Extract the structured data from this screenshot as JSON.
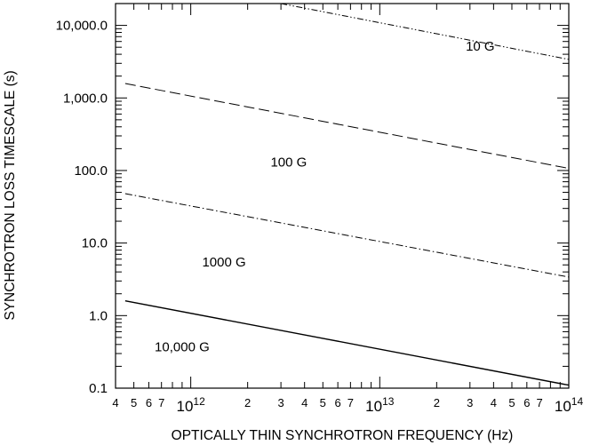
{
  "chart_data": {
    "type": "line",
    "x_scale": "log",
    "y_scale": "log",
    "xlim": [
      400000000000.0,
      100000000000000.0
    ],
    "ylim": [
      0.1,
      20000
    ],
    "xlabel": "OPTICALLY THIN SYNCHROTRON FREQUENCY (Hz)",
    "ylabel": "SYNCHROTRON LOSS TIMESCALE (s)",
    "grid": false,
    "x_ticks": [
      {
        "value": 400000000000.0,
        "label": "4"
      },
      {
        "value": 500000000000.0,
        "label": "5"
      },
      {
        "value": 600000000000.0,
        "label": "6"
      },
      {
        "value": 700000000000.0,
        "label": "7"
      },
      {
        "value": 1000000000000.0,
        "label": "10",
        "sup": "12"
      },
      {
        "value": 2000000000000.0,
        "label": "2"
      },
      {
        "value": 3000000000000.0,
        "label": "3"
      },
      {
        "value": 4000000000000.0,
        "label": "4"
      },
      {
        "value": 5000000000000.0,
        "label": "5"
      },
      {
        "value": 6000000000000.0,
        "label": "6"
      },
      {
        "value": 7000000000000.0,
        "label": "7"
      },
      {
        "value": 10000000000000.0,
        "label": "10",
        "sup": "13"
      },
      {
        "value": 20000000000000.0,
        "label": "2"
      },
      {
        "value": 30000000000000.0,
        "label": "3"
      },
      {
        "value": 40000000000000.0,
        "label": "4"
      },
      {
        "value": 50000000000000.0,
        "label": "5"
      },
      {
        "value": 60000000000000.0,
        "label": "6"
      },
      {
        "value": 70000000000000.0,
        "label": "7"
      },
      {
        "value": 100000000000000.0,
        "label": "10",
        "sup": "14"
      }
    ],
    "y_ticks": [
      {
        "value": 0.1,
        "label": "0.1"
      },
      {
        "value": 1,
        "label": "1.0"
      },
      {
        "value": 10,
        "label": "10.0"
      },
      {
        "value": 100,
        "label": "100.0"
      },
      {
        "value": 1000,
        "label": "1,000.0"
      },
      {
        "value": 10000,
        "label": "10,000.0"
      }
    ],
    "series": [
      {
        "name": "10 G",
        "dash": "dash-dot-dot",
        "x": [
          3000000000000.0,
          100000000000000.0
        ],
        "y": [
          20000,
          3400
        ],
        "label_at": [
          34000000000000.0,
          5200
        ]
      },
      {
        "name": "100 G",
        "dash": "dash",
        "x": [
          450000000000.0,
          100000000000000.0
        ],
        "y": [
          1580,
          107
        ],
        "label_at": [
          3300000000000.0,
          130
        ]
      },
      {
        "name": "1000 G",
        "dash": "dash-dot",
        "x": [
          450000000000.0,
          100000000000000.0
        ],
        "y": [
          48,
          3.4
        ],
        "label_at": [
          1500000000000.0,
          5.5
        ]
      },
      {
        "name": "10,000 G",
        "dash": "solid",
        "x": [
          450000000000.0,
          100000000000000.0
        ],
        "y": [
          1.6,
          0.11
        ],
        "label_at": [
          900000000000.0,
          0.37
        ]
      }
    ]
  }
}
